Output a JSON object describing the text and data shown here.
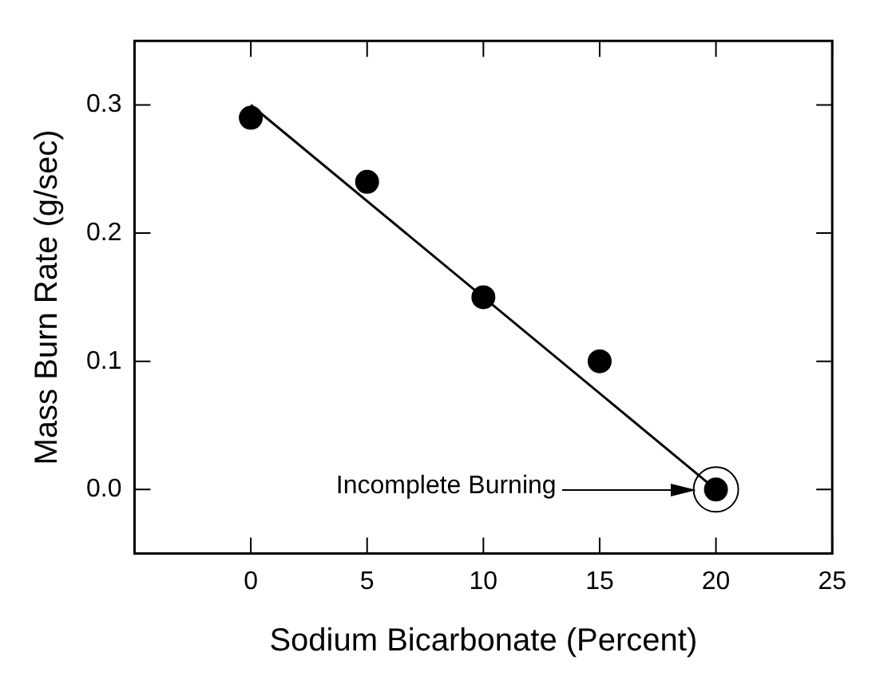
{
  "chart_data": {
    "type": "scatter",
    "xlabel": "Sodium Bicarbonate (Percent)",
    "ylabel": "Mass Burn Rate (g/sec)",
    "xlim": [
      -5,
      25
    ],
    "xticks": [
      0,
      5,
      10,
      15,
      20,
      25
    ],
    "ylim": [
      -0.05,
      0.35
    ],
    "yticks": [
      {
        "value": 0,
        "label": "0.0"
      },
      0.1,
      0.2,
      0.3
    ],
    "series": [
      {
        "type": "scatter",
        "color": "#000000",
        "x": [
          0,
          5,
          10,
          15,
          20
        ],
        "values": [
          0.29,
          0.24,
          0.15,
          0.1,
          0.0
        ],
        "marker": "circle"
      },
      {
        "type": "line",
        "color": "#000000",
        "x": [
          0,
          20
        ],
        "values": [
          0.3,
          0.0
        ],
        "line_style": "solid"
      }
    ],
    "annotations": [
      "Incomplete Burning"
    ],
    "grid": false,
    "legend": false
  }
}
